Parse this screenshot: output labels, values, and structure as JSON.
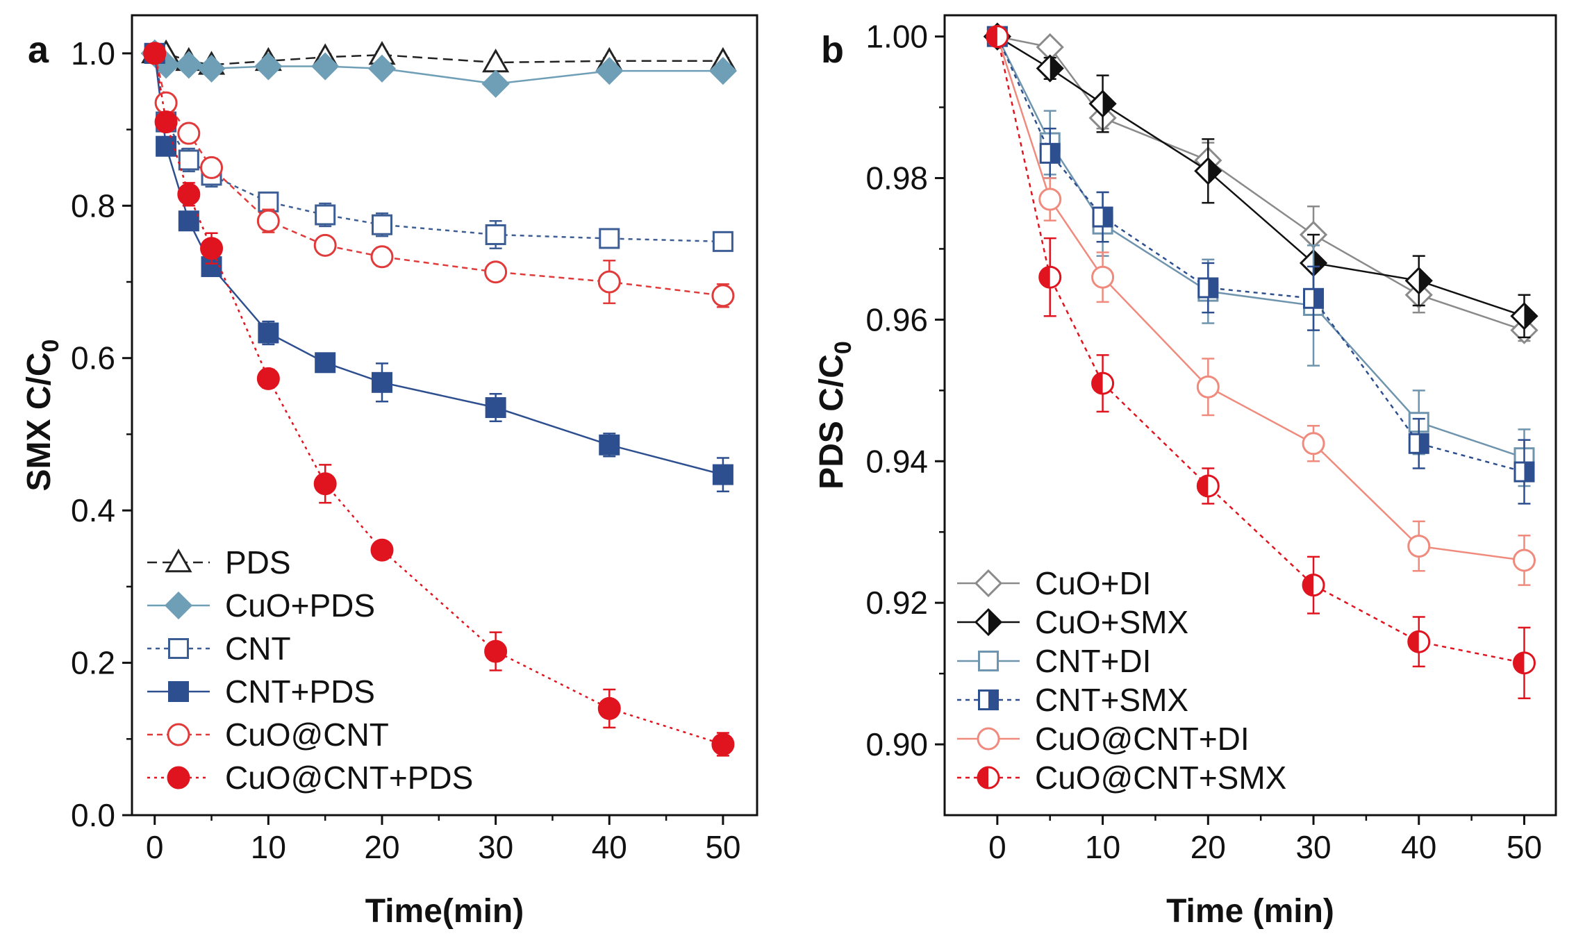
{
  "chart_data": [
    {
      "panel": "a",
      "type": "line",
      "xlabel": "Time(min)",
      "ylabel": "SMX C/C0",
      "ylabel_main": "SMX C/C",
      "ylabel_sub": "0",
      "xlim": [
        -2,
        53
      ],
      "ylim": [
        0.0,
        1.05
      ],
      "xticks": [
        0,
        10,
        20,
        30,
        40,
        50
      ],
      "yticks": [
        0.0,
        0.2,
        0.4,
        0.6,
        0.8,
        1.0
      ],
      "xtick_labels": [
        "0",
        "10",
        "20",
        "30",
        "40",
        "50"
      ],
      "ytick_labels": [
        "0.0",
        "0.2",
        "0.4",
        "0.6",
        "0.8",
        "1.0"
      ],
      "legend_position": "bottom-left",
      "series": [
        {
          "name": "PDS",
          "marker": "triangle-open",
          "color": "#222222",
          "dash": "14 8",
          "x": [
            0,
            1,
            3,
            5,
            10,
            15,
            20,
            30,
            40,
            50
          ],
          "values": [
            1.0,
            1.0,
            0.99,
            0.985,
            0.99,
            0.995,
            0.998,
            0.988,
            0.99,
            0.99
          ],
          "errors": [
            0.003,
            0.003,
            0.004,
            0.004,
            0.004,
            0.004,
            0.004,
            0.004,
            0.004,
            0.004
          ]
        },
        {
          "name": "CuO+PDS",
          "marker": "diamond-filled",
          "color": "#6f9fb7",
          "dash": "",
          "x": [
            0,
            1,
            3,
            5,
            10,
            15,
            20,
            30,
            40,
            50
          ],
          "values": [
            1.0,
            0.985,
            0.985,
            0.98,
            0.983,
            0.983,
            0.98,
            0.96,
            0.977,
            0.977
          ],
          "errors": [
            0.003,
            0.004,
            0.004,
            0.004,
            0.004,
            0.004,
            0.004,
            0.004,
            0.004,
            0.004
          ]
        },
        {
          "name": "CNT",
          "marker": "square-open",
          "color": "#3d5d95",
          "dash": "6 6",
          "x": [
            0,
            1,
            3,
            5,
            10,
            15,
            20,
            30,
            40,
            50
          ],
          "values": [
            1.0,
            0.91,
            0.86,
            0.84,
            0.805,
            0.788,
            0.775,
            0.762,
            0.757,
            0.753
          ],
          "errors": [
            0.005,
            0.01,
            0.015,
            0.015,
            0.012,
            0.015,
            0.015,
            0.018,
            0.012,
            0.008
          ]
        },
        {
          "name": "CNT+PDS",
          "marker": "square-filled",
          "color": "#2e4f8f",
          "dash": "",
          "x": [
            0,
            1,
            3,
            5,
            10,
            15,
            20,
            30,
            40,
            50
          ],
          "values": [
            1.0,
            0.878,
            0.78,
            0.72,
            0.633,
            0.594,
            0.568,
            0.535,
            0.486,
            0.447
          ],
          "errors": [
            0.005,
            0.01,
            0.01,
            0.01,
            0.015,
            0.012,
            0.025,
            0.018,
            0.015,
            0.022
          ]
        },
        {
          "name": "CuO@CNT",
          "marker": "circle-open",
          "color": "#e03a3a",
          "dash": "8 6",
          "x": [
            0,
            1,
            3,
            5,
            10,
            15,
            20,
            30,
            40,
            50
          ],
          "values": [
            1.0,
            0.935,
            0.895,
            0.85,
            0.78,
            0.748,
            0.733,
            0.713,
            0.7,
            0.682
          ],
          "errors": [
            0.005,
            0.01,
            0.012,
            0.012,
            0.015,
            0.01,
            0.012,
            0.01,
            0.028,
            0.015
          ]
        },
        {
          "name": "CuO@CNT+PDS",
          "marker": "circle-filled",
          "color": "#e0141e",
          "dash": "4 6",
          "x": [
            0,
            1,
            3,
            5,
            10,
            15,
            20,
            30,
            40,
            50
          ],
          "values": [
            1.0,
            0.91,
            0.815,
            0.744,
            0.573,
            0.435,
            0.348,
            0.215,
            0.14,
            0.093
          ],
          "errors": [
            0.005,
            0.012,
            0.015,
            0.02,
            0.012,
            0.025,
            0.01,
            0.025,
            0.025,
            0.015
          ]
        }
      ]
    },
    {
      "panel": "b",
      "type": "line",
      "xlabel": "Time (min)",
      "ylabel": "PDS C/C0",
      "ylabel_main": "PDS C/C",
      "ylabel_sub": "0",
      "xlim": [
        -5,
        53
      ],
      "ylim": [
        0.89,
        1.003
      ],
      "xticks": [
        0,
        10,
        20,
        30,
        40,
        50
      ],
      "yticks": [
        0.9,
        0.92,
        0.94,
        0.96,
        0.98,
        1.0
      ],
      "xtick_labels": [
        "0",
        "10",
        "20",
        "30",
        "40",
        "50"
      ],
      "ytick_labels": [
        "0.90",
        "0.92",
        "0.94",
        "0.96",
        "0.98",
        "1.00"
      ],
      "legend_position": "bottom-left",
      "series": [
        {
          "name": "CuO+DI",
          "marker": "diamond-open",
          "color": "#8a8a8a",
          "dash": "",
          "x": [
            0,
            5,
            10,
            20,
            30,
            40,
            50
          ],
          "values": [
            1.0,
            0.9985,
            0.9885,
            0.9825,
            0.972,
            0.9635,
            0.9585
          ],
          "errors": [
            0.0003,
            0.0008,
            0.0015,
            0.0025,
            0.004,
            0.0025,
            0.0015
          ]
        },
        {
          "name": "CuO+SMX",
          "marker": "diamond-half",
          "color": "#111111",
          "dash": "",
          "x": [
            0,
            5,
            10,
            20,
            30,
            40,
            50
          ],
          "values": [
            1.0,
            0.9955,
            0.9905,
            0.981,
            0.968,
            0.9655,
            0.9605
          ],
          "errors": [
            0.0003,
            0.0015,
            0.004,
            0.0045,
            0.004,
            0.0035,
            0.003
          ]
        },
        {
          "name": "CNT+DI",
          "marker": "square-open",
          "color": "#6f94ad",
          "dash": "",
          "x": [
            0,
            5,
            10,
            20,
            30,
            40,
            50
          ],
          "values": [
            1.0,
            0.985,
            0.9735,
            0.964,
            0.962,
            0.9455,
            0.9405
          ],
          "errors": [
            0.0003,
            0.0045,
            0.0045,
            0.0045,
            0.0085,
            0.0045,
            0.004
          ]
        },
        {
          "name": "CNT+SMX",
          "marker": "square-half",
          "color": "#2e4f8f",
          "dash": "6 6",
          "x": [
            0,
            5,
            10,
            20,
            30,
            40,
            50
          ],
          "values": [
            1.0,
            0.9835,
            0.9745,
            0.9645,
            0.963,
            0.9425,
            0.9385
          ],
          "errors": [
            0.0003,
            0.0035,
            0.0035,
            0.0035,
            0.0045,
            0.0035,
            0.0045
          ]
        },
        {
          "name": "CuO@CNT+DI",
          "marker": "circle-open",
          "color": "#ef8a7d",
          "dash": "",
          "x": [
            0,
            5,
            10,
            20,
            30,
            40,
            50
          ],
          "values": [
            1.0,
            0.977,
            0.966,
            0.9505,
            0.9425,
            0.928,
            0.926
          ],
          "errors": [
            0.0003,
            0.003,
            0.0035,
            0.004,
            0.0025,
            0.0035,
            0.0035
          ]
        },
        {
          "name": "CuO@CNT+SMX",
          "marker": "circle-half",
          "color": "#e0141e",
          "dash": "6 6",
          "x": [
            0,
            5,
            10,
            20,
            30,
            40,
            50
          ],
          "values": [
            1.0,
            0.966,
            0.951,
            0.9365,
            0.9225,
            0.9145,
            0.9115
          ],
          "errors": [
            0.0003,
            0.0055,
            0.004,
            0.0025,
            0.004,
            0.0035,
            0.005
          ]
        }
      ]
    }
  ]
}
